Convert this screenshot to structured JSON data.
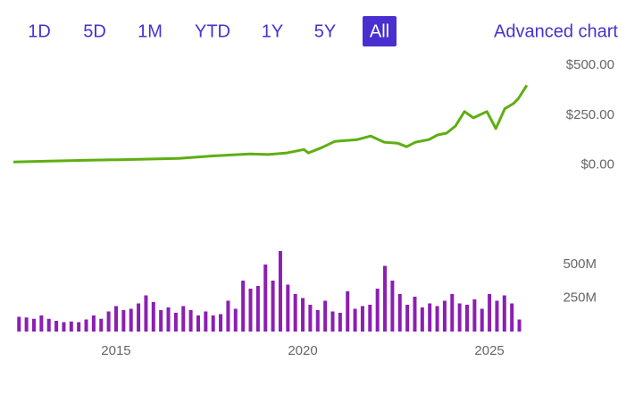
{
  "range_buttons": [
    {
      "label": "1D"
    },
    {
      "label": "5D"
    },
    {
      "label": "1M"
    },
    {
      "label": "YTD"
    },
    {
      "label": "1Y"
    },
    {
      "label": "5Y"
    },
    {
      "label": "All",
      "selected": true
    }
  ],
  "advanced_chart": "Advanced chart",
  "chart_data": [
    {
      "type": "line",
      "color": "#5fae12",
      "x": [
        2012.25,
        2013.09,
        2014.28,
        2015.48,
        2016.68,
        2017.63,
        2018.59,
        2019.07,
        2019.55,
        2020.03,
        2020.15,
        2020.5,
        2020.86,
        2021.46,
        2021.82,
        2022.18,
        2022.54,
        2022.78,
        2023.02,
        2023.38,
        2023.61,
        2023.85,
        2024.09,
        2024.33,
        2024.57,
        2024.93,
        2025.17,
        2025.41,
        2025.65,
        2025.77,
        2026.0
      ],
      "values": [
        14,
        18,
        23,
        27,
        32,
        45,
        55,
        52,
        59,
        77,
        60,
        86,
        118,
        127,
        145,
        114,
        109,
        91,
        114,
        127,
        150,
        159,
        195,
        268,
        236,
        268,
        182,
        282,
        309,
        332,
        400
      ],
      "xlim": [
        2012.25,
        2026.05
      ],
      "ylim": [
        -25,
        550
      ],
      "yticks": [
        {
          "value": 0,
          "label": "$0.00"
        },
        {
          "value": 250,
          "label": "$250.00"
        },
        {
          "value": 500,
          "label": "$500.00"
        }
      ]
    },
    {
      "type": "bar",
      "color": "#8b1fb3",
      "x": [
        2012.4,
        2012.6,
        2012.8,
        2013.0,
        2013.2,
        2013.4,
        2013.6,
        2013.8,
        2014.0,
        2014.2,
        2014.4,
        2014.6,
        2014.8,
        2015.0,
        2015.2,
        2015.4,
        2015.6,
        2015.8,
        2016.0,
        2016.2,
        2016.4,
        2016.6,
        2016.8,
        2017.0,
        2017.2,
        2017.4,
        2017.6,
        2017.8,
        2018.0,
        2018.2,
        2018.4,
        2018.6,
        2018.8,
        2019.0,
        2019.2,
        2019.4,
        2019.6,
        2019.8,
        2020.0,
        2020.2,
        2020.4,
        2020.6,
        2020.8,
        2021.0,
        2021.2,
        2021.4,
        2021.6,
        2021.8,
        2022.0,
        2022.2,
        2022.4,
        2022.6,
        2022.8,
        2023.0,
        2023.2,
        2023.4,
        2023.6,
        2023.8,
        2024.0,
        2024.2,
        2024.4,
        2024.6,
        2024.8,
        2025.0,
        2025.2,
        2025.4,
        2025.6,
        2025.8
      ],
      "values": [
        110,
        105,
        95,
        120,
        95,
        80,
        70,
        75,
        70,
        90,
        120,
        95,
        150,
        190,
        160,
        170,
        210,
        270,
        220,
        160,
        180,
        140,
        190,
        160,
        120,
        150,
        120,
        130,
        230,
        170,
        380,
        320,
        340,
        500,
        380,
        600,
        350,
        280,
        250,
        200,
        160,
        230,
        150,
        140,
        300,
        170,
        190,
        200,
        320,
        490,
        380,
        280,
        200,
        260,
        180,
        210,
        190,
        230,
        280,
        210,
        200,
        240,
        170,
        280,
        230,
        270,
        210,
        90
      ],
      "xlim": [
        2012.25,
        2026.05
      ],
      "ylim": [
        0,
        620
      ],
      "xticks": [
        2015,
        2020,
        2025
      ],
      "yticks": [
        {
          "value": 250,
          "label": "250M"
        },
        {
          "value": 500,
          "label": "500M"
        }
      ]
    }
  ]
}
